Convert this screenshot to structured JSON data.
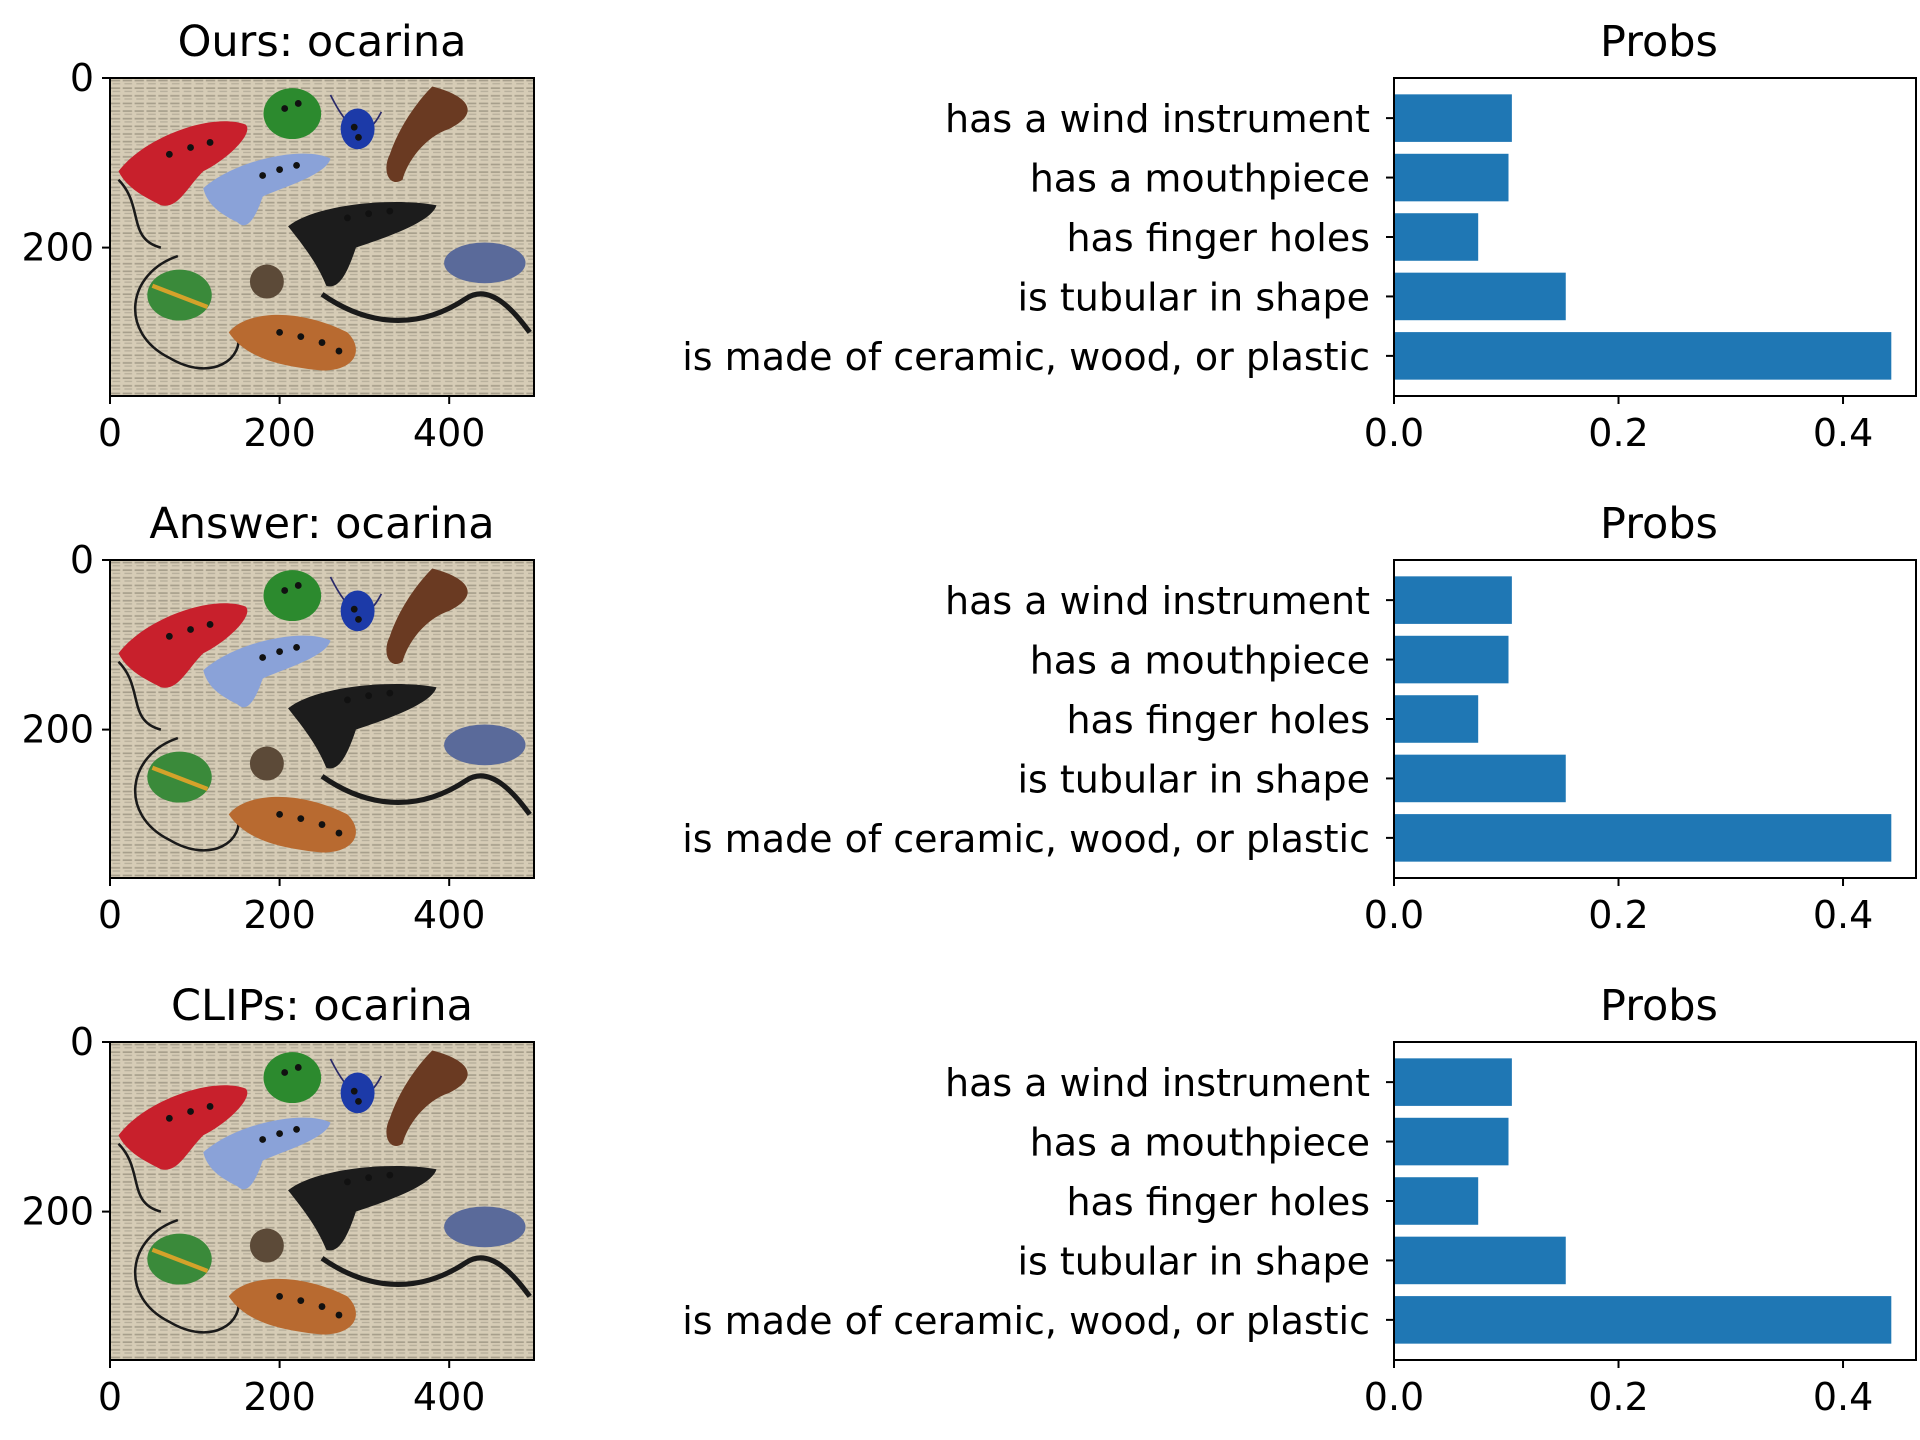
{
  "panels": [
    {
      "image_title": "Ours: ocarina",
      "chart_title": "Probs"
    },
    {
      "image_title": "Answer: ocarina",
      "chart_title": "Probs"
    },
    {
      "image_title": "CLIPs: ocarina",
      "chart_title": "Probs"
    }
  ],
  "image_axes": {
    "x_ticks": [
      "0",
      "200",
      "400"
    ],
    "y_ticks": [
      "0",
      "200"
    ],
    "x_range": [
      0,
      500
    ],
    "y_range": [
      0,
      375
    ]
  },
  "image_content": {
    "background": "newspaper with ocarinas",
    "ocarina_colors": [
      "#c8202c",
      "#2c8a2e",
      "#1c3aa8",
      "#6a3a22",
      "#8aa2d8",
      "#1c1c1c",
      "#5a6a9a",
      "#3a8a3a",
      "#b86a30",
      "#5c4a38"
    ]
  },
  "chart_data": [
    {
      "type": "bar",
      "orientation": "horizontal",
      "title": "Probs",
      "categories": [
        "has a wind instrument",
        "has a mouthpiece",
        "has finger holes",
        "is tubular in shape",
        "is made of ceramic, wood, or plastic"
      ],
      "values": [
        0.105,
        0.102,
        0.075,
        0.153,
        0.443
      ],
      "x_ticks": [
        "0.0",
        "0.2",
        "0.4"
      ],
      "xlim": [
        0,
        0.465
      ],
      "bar_color": "#1f77b4"
    },
    {
      "type": "bar",
      "orientation": "horizontal",
      "title": "Probs",
      "categories": [
        "has a wind instrument",
        "has a mouthpiece",
        "has finger holes",
        "is tubular in shape",
        "is made of ceramic, wood, or plastic"
      ],
      "values": [
        0.105,
        0.102,
        0.075,
        0.153,
        0.443
      ],
      "x_ticks": [
        "0.0",
        "0.2",
        "0.4"
      ],
      "xlim": [
        0,
        0.465
      ],
      "bar_color": "#1f77b4"
    },
    {
      "type": "bar",
      "orientation": "horizontal",
      "title": "Probs",
      "categories": [
        "has a wind instrument",
        "has a mouthpiece",
        "has finger holes",
        "is tubular in shape",
        "is made of ceramic, wood, or plastic"
      ],
      "values": [
        0.105,
        0.102,
        0.075,
        0.153,
        0.443
      ],
      "x_ticks": [
        "0.0",
        "0.2",
        "0.4"
      ],
      "xlim": [
        0,
        0.465
      ],
      "bar_color": "#1f77b4"
    }
  ]
}
